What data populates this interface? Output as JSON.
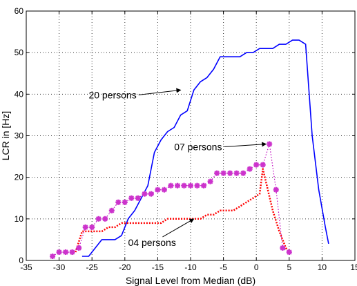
{
  "chart_data": {
    "type": "line",
    "title": "",
    "xlabel": "Signal Level from Median (dB)",
    "ylabel": "LCR in [Hz]",
    "xlim": [
      -35,
      15
    ],
    "ylim": [
      0,
      60
    ],
    "xticks": [
      -35,
      -30,
      -25,
      -20,
      -15,
      -10,
      -5,
      0,
      5,
      10,
      15
    ],
    "yticks": [
      0,
      10,
      20,
      30,
      40,
      50,
      60
    ],
    "grid": true,
    "colors": {
      "blue": "#0000ff",
      "red": "#ff0000",
      "magenta": "#bf00bf",
      "marker": "#cc33cc"
    },
    "series": [
      {
        "color": "#0000ff",
        "style": "solid",
        "x": [
          -26.5,
          -25.5,
          -24.5,
          -23.5,
          -22.5,
          -21.5,
          -20.5,
          -19.5,
          -18.5,
          -17.5,
          -16.5,
          -15.5,
          -14.5,
          -13.5,
          -12.5,
          -11.5,
          -10.5,
          -9.5,
          -8.5,
          -7.5,
          -6.5,
          -5.5,
          -4.5,
          -3.5,
          -2.5,
          -1.5,
          -0.5,
          0.5,
          1.5,
          2.5,
          3.5,
          4.5,
          5.5,
          6.5,
          7.5,
          8.5,
          9.5,
          10.5,
          11
        ],
        "y": [
          1,
          1,
          3,
          5,
          5,
          5,
          6,
          10,
          12,
          15,
          18,
          26,
          29,
          31,
          32,
          35,
          36,
          41,
          43,
          44,
          46,
          49,
          49,
          49,
          49,
          50,
          50,
          51,
          51,
          51,
          52,
          52,
          53,
          53,
          52,
          30,
          17,
          8,
          4
        ]
      },
      {
        "color": "#ff0000",
        "style": "dotted",
        "x": [
          -27.5,
          -26.5,
          -25.5,
          -24.5,
          -23.5,
          -22.5,
          -21.5,
          -20.5,
          -19.5,
          -18.5,
          -17.5,
          -16.5,
          -15.5,
          -14.5,
          -13.5,
          -12.5,
          -11.5,
          -10.5,
          -9.5,
          -8.5,
          -7.5,
          -6.5,
          -5.5,
          -4.5,
          -3.5,
          -2.5,
          -1.5,
          -0.5,
          0.5,
          1,
          2.5,
          3.5,
          4.5,
          5
        ],
        "y": [
          2,
          7,
          7,
          7,
          7,
          8,
          8,
          9,
          9,
          9,
          9,
          9,
          9,
          9,
          10,
          10,
          10,
          10,
          10,
          10,
          11,
          11,
          12,
          12,
          12,
          13,
          14,
          15,
          16,
          22,
          12,
          7,
          3,
          2
        ]
      },
      {
        "color": "#bf00bf",
        "style": "dotted",
        "marker": "star",
        "x": [
          -31,
          -30,
          -29,
          -28,
          -27,
          -26,
          -25,
          -24,
          -23,
          -22,
          -21,
          -20,
          -19,
          -18,
          -17,
          -16,
          -15,
          -14,
          -13,
          -12,
          -11,
          -10,
          -9,
          -8,
          -7,
          -6,
          -5,
          -4,
          -3,
          -2,
          -1,
          0,
          1,
          2,
          3,
          4,
          5
        ],
        "y": [
          1,
          2,
          2,
          2,
          3,
          8,
          8,
          10,
          10,
          12,
          14,
          14,
          15,
          15,
          16,
          16,
          17,
          17,
          18,
          18,
          18,
          18,
          18,
          18,
          19,
          21,
          21,
          21,
          21,
          21,
          22,
          23,
          23,
          28,
          17,
          3,
          2
        ]
      }
    ],
    "annotations": [
      {
        "text": "20 persons",
        "text_x": -25.5,
        "text_y": 39,
        "arrow_to_x": -11.5,
        "arrow_to_y": 41
      },
      {
        "text": "07 persons",
        "text_x": -12.5,
        "text_y": 26.5,
        "arrow_to_x": 1.5,
        "arrow_to_y": 28
      },
      {
        "text": "04 persons",
        "text_x": -19.5,
        "text_y": 3.5,
        "arrow_to_x": -9.5,
        "arrow_to_y": 10
      }
    ]
  }
}
